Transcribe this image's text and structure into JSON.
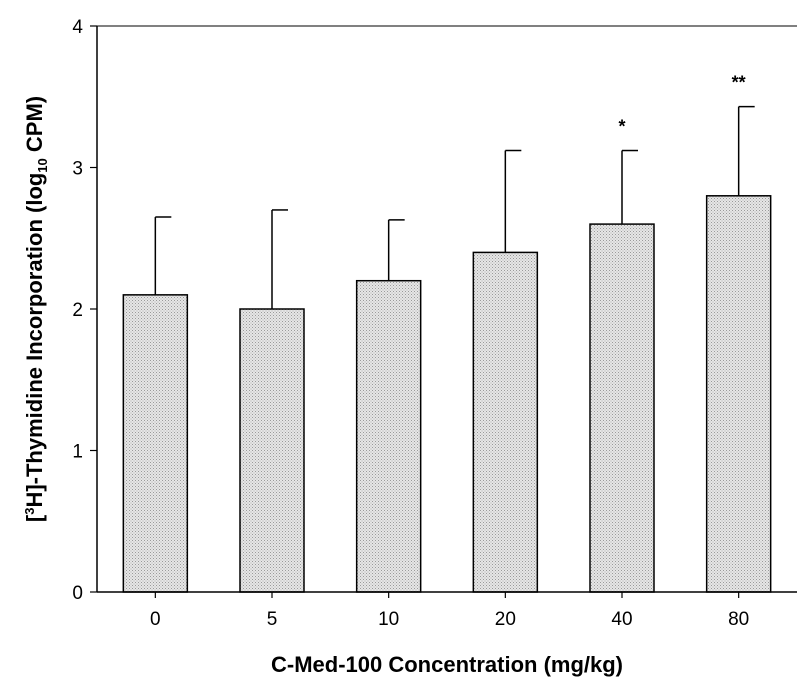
{
  "chart_data": {
    "type": "bar",
    "xlabel": "C-Med-100 Concentration (mg/kg)",
    "ylabel": {
      "prefix": "[",
      "sup": "3",
      "mid": "H]-Thymidine Incorporation (log",
      "sub": "10",
      "suffix": " CPM)"
    },
    "categories": [
      "0",
      "5",
      "10",
      "20",
      "40",
      "80"
    ],
    "values": [
      2.1,
      2.0,
      2.2,
      2.4,
      2.6,
      2.8
    ],
    "errors": [
      0.55,
      0.7,
      0.43,
      0.72,
      0.52,
      0.63
    ],
    "annotations": [
      "",
      "",
      "",
      "",
      "*",
      "**"
    ],
    "ylim": [
      0,
      4
    ],
    "yticks": [
      "0",
      "1",
      "2",
      "3",
      "4"
    ],
    "bar_color": "#dcdcdc",
    "grid": false
  }
}
